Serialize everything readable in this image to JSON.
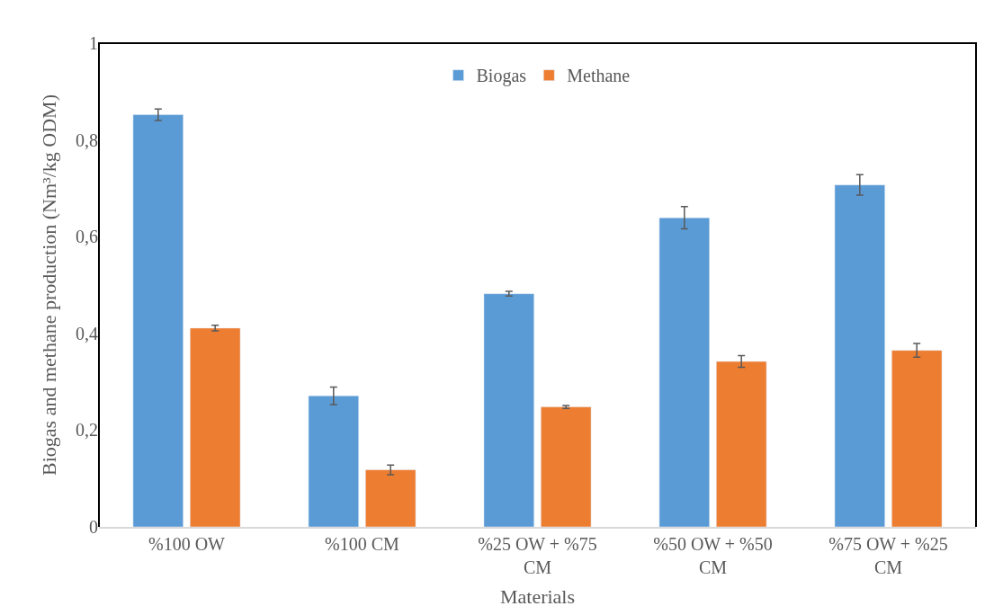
{
  "chart_data": {
    "type": "bar",
    "xlabel": "Materials",
    "ylabel": "Biogas and methane production (Nm³/kg ODM)",
    "categories": [
      "%100 OW",
      "%100 CM",
      "%25 OW + %75 CM",
      "%50 OW + %50 CM",
      "%75 OW + %25 CM"
    ],
    "series": [
      {
        "name": "Biogas",
        "color": "#5b9bd5",
        "values": [
          0.852,
          0.271,
          0.482,
          0.639,
          0.707
        ],
        "errors": [
          0.012,
          0.018,
          0.005,
          0.023,
          0.021
        ]
      },
      {
        "name": "Methane",
        "color": "#ed7d31",
        "values": [
          0.411,
          0.118,
          0.248,
          0.342,
          0.365
        ],
        "errors": [
          0.006,
          0.01,
          0.003,
          0.012,
          0.014
        ]
      }
    ],
    "ylim": [
      0,
      1
    ],
    "yticks": [
      0,
      {
        "value": 0.2,
        "label": "0,2"
      },
      {
        "value": 0.4,
        "label": "0,4"
      },
      {
        "value": 0.6,
        "label": "0,6"
      },
      {
        "value": 0.8,
        "label": "0,8"
      },
      1
    ],
    "legend": "top"
  }
}
